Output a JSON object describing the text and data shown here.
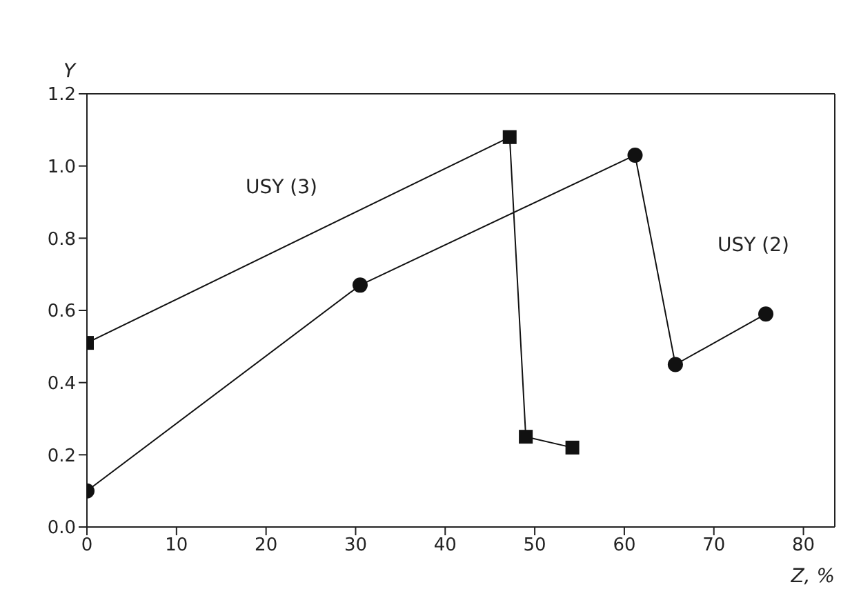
{
  "chart_data": {
    "type": "line",
    "xlabel": "Z, %",
    "ylabel": "Y",
    "xlim": [
      0,
      83.5
    ],
    "xticks": [
      0,
      10,
      20,
      30,
      40,
      50,
      60,
      70,
      80
    ],
    "ylim": [
      0,
      1.2
    ],
    "yticks": [
      {
        "value": 0,
        "label": "0.0"
      },
      {
        "value": 0.2,
        "label": "0.2"
      },
      {
        "value": 0.4,
        "label": "0.4"
      },
      {
        "value": 0.6,
        "label": "0.6"
      },
      {
        "value": 0.8,
        "label": "0.8"
      },
      {
        "value": 1.0,
        "label": "1.0"
      },
      {
        "value": 1.2,
        "label": "1.2"
      }
    ],
    "series": [
      {
        "color": "#111111",
        "marker": "square",
        "x": [
          0,
          47.2,
          49,
          54.2
        ],
        "values": [
          0.51,
          1.08,
          0.25,
          0.22
        ]
      },
      {
        "color": "#111111",
        "marker": "circle",
        "x": [
          0,
          30.5,
          61.2,
          65.7,
          75.8
        ],
        "values": [
          0.1,
          0.67,
          1.03,
          0.45,
          0.59
        ]
      }
    ],
    "annotations": [
      "USY (3)",
      "USY (2)"
    ],
    "grid": false,
    "line_style": "solid"
  }
}
